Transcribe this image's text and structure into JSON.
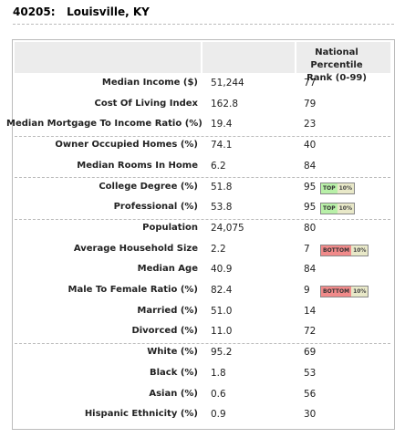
{
  "header": {
    "zip": "40205:",
    "place": "Louisville, KY"
  },
  "table": {
    "rank_header": "National Percentile Rank (0-99)",
    "groups": [
      [
        {
          "label": "Median Income ($)",
          "value": "51,244",
          "rank": "77"
        },
        {
          "label": "Cost Of Living Index",
          "value": "162.8",
          "rank": "79"
        },
        {
          "label": "Median Mortgage To Income Ratio (%)",
          "value": "19.4",
          "rank": "23"
        }
      ],
      [
        {
          "label": "Owner Occupied Homes (%)",
          "value": "74.1",
          "rank": "40"
        },
        {
          "label": "Median Rooms In Home",
          "value": "6.2",
          "rank": "84"
        }
      ],
      [
        {
          "label": "College Degree (%)",
          "value": "51.8",
          "rank": "95",
          "badge": {
            "label": "TOP",
            "pct": "10%",
            "color": "#b8f0a8"
          }
        },
        {
          "label": "Professional (%)",
          "value": "53.8",
          "rank": "95",
          "badge": {
            "label": "TOP",
            "pct": "10%",
            "color": "#b8f0a8"
          }
        }
      ],
      [
        {
          "label": "Population",
          "value": "24,075",
          "rank": "80"
        },
        {
          "label": "Average Household Size",
          "value": "2.2",
          "rank": "7",
          "badge": {
            "label": "BOTTOM",
            "pct": "10%",
            "color": "#f08a8a"
          }
        },
        {
          "label": "Median Age",
          "value": "40.9",
          "rank": "84"
        },
        {
          "label": "Male To Female Ratio (%)",
          "value": "82.4",
          "rank": "9",
          "badge": {
            "label": "BOTTOM",
            "pct": "10%",
            "color": "#f08a8a"
          }
        },
        {
          "label": "Married (%)",
          "value": "51.0",
          "rank": "14"
        },
        {
          "label": "Divorced (%)",
          "value": "11.0",
          "rank": "72"
        }
      ],
      [
        {
          "label": "White (%)",
          "value": "95.2",
          "rank": "69"
        },
        {
          "label": "Black (%)",
          "value": "1.8",
          "rank": "53"
        },
        {
          "label": "Asian (%)",
          "value": "0.6",
          "rank": "56"
        },
        {
          "label": "Hispanic Ethnicity (%)",
          "value": "0.9",
          "rank": "30"
        }
      ]
    ]
  }
}
